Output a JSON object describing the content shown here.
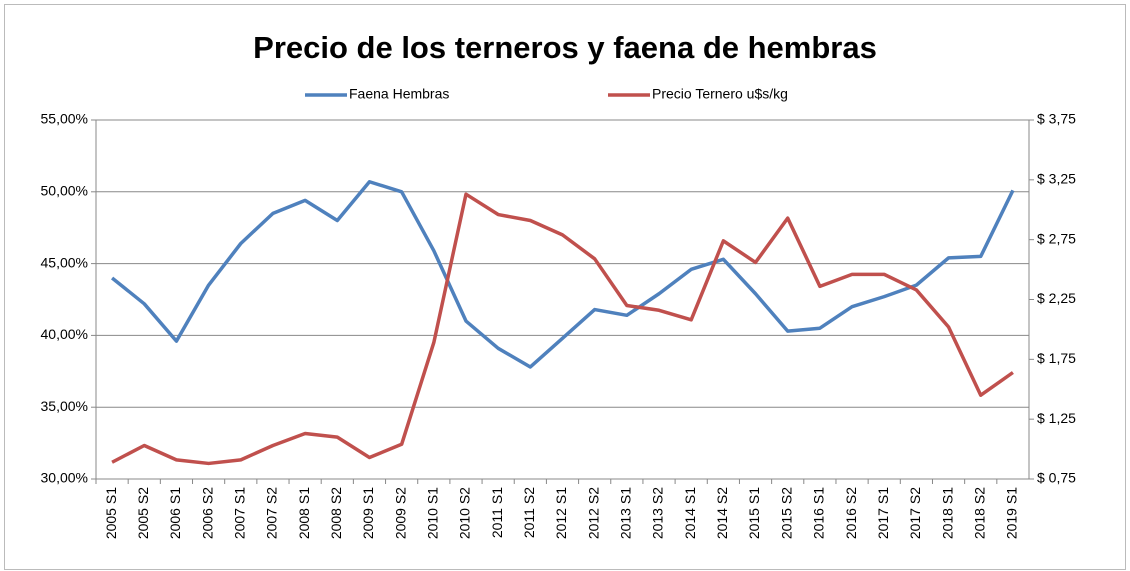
{
  "chart_data": {
    "type": "line",
    "title": "Precio de los terneros y faena de hembras",
    "categories": [
      "2005 S1",
      "2005 S2",
      "2006 S1",
      "2006 S2",
      "2007 S1",
      "2007 S2",
      "2008 S1",
      "2008 S2",
      "2009 S1",
      "2009 S2",
      "2010 S1",
      "2010 S2",
      "2011 S1",
      "2011 S2",
      "2012 S1",
      "2012 S2",
      "2013 S1",
      "2013 S2",
      "2014 S1",
      "2014 S2",
      "2015 S1",
      "2015 S2",
      "2016 S1",
      "2016 S2",
      "2017 S1",
      "2017 S2",
      "2018 S1",
      "2018 S2",
      "2019 S1"
    ],
    "series": [
      {
        "name": "Faena Hembras",
        "color": "#4f81bd",
        "values": [
          44.0,
          42.2,
          39.6,
          43.5,
          46.4,
          48.5,
          49.4,
          48.0,
          50.7,
          50.0,
          45.9,
          41.0,
          39.1,
          37.8,
          39.8,
          41.8,
          41.4,
          42.9,
          44.6,
          45.3,
          42.9,
          40.3,
          40.5,
          42.0,
          42.7,
          43.5,
          45.4,
          45.5,
          50.1
        ]
      },
      {
        "name": "Precio Ternero u$s/kg",
        "color": "#c0504d",
        "axis": "y2",
        "values": [
          0.89,
          1.03,
          0.91,
          0.88,
          0.91,
          1.03,
          1.13,
          1.1,
          0.93,
          1.04,
          1.89,
          3.13,
          2.96,
          2.91,
          2.79,
          2.59,
          2.2,
          2.16,
          2.08,
          2.74,
          2.56,
          2.93,
          2.36,
          2.46,
          2.46,
          2.33,
          2.02,
          1.45,
          1.64
        ]
      }
    ],
    "ylim": [
      30,
      55
    ],
    "yticks": [
      {
        "value": 30,
        "label": "30,00%"
      },
      {
        "value": 35,
        "label": "35,00%"
      },
      {
        "value": 40,
        "label": "40,00%"
      },
      {
        "value": 45,
        "label": "45,00%"
      },
      {
        "value": 50,
        "label": "50,00%"
      },
      {
        "value": 55,
        "label": "55,00%"
      }
    ],
    "y2lim": [
      0.75,
      3.75
    ],
    "y2ticks": [
      {
        "value": 0.75,
        "label": "$ 0,75"
      },
      {
        "value": 1.25,
        "label": "$ 1,25"
      },
      {
        "value": 1.75,
        "label": "$ 1,75"
      },
      {
        "value": 2.25,
        "label": "$ 2,25"
      },
      {
        "value": 2.75,
        "label": "$ 2,75"
      },
      {
        "value": 3.25,
        "label": "$ 3,25"
      },
      {
        "value": 3.75,
        "label": "$ 3,75"
      }
    ],
    "grid": true,
    "legend": "top"
  }
}
